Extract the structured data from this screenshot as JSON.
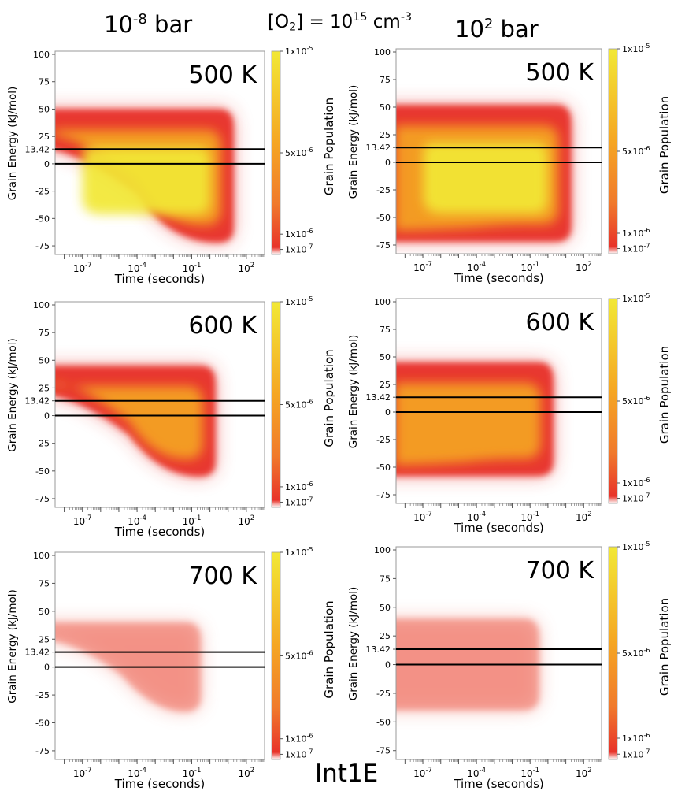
{
  "header": {
    "left_base": "10",
    "left_exp": "-8",
    "left_unit": " bar",
    "mid_open": "[O",
    "mid_sub": "2",
    "mid_rest": "] = 10",
    "mid_exp": "15",
    "mid_unit": " cm",
    "mid_unit_exp": "-3",
    "right_base": "10",
    "right_exp": "2",
    "right_unit": " bar"
  },
  "figure_label": "Int1E",
  "colors": {
    "low": "#e8332a",
    "mid": "#f5a623",
    "high": "#f2e836",
    "line": "#000000"
  },
  "chart_data": [
    {
      "type": "heatmap",
      "pressure": "10-8 bar",
      "temperature_label": "500 K",
      "xlabel": "Time (seconds)",
      "ylabel": "Grain Energy (kJ/mol)",
      "colorbar_label": "Grain Population",
      "x_ticks": [
        {
          "base": "10",
          "exp": "-7"
        },
        {
          "base": "10",
          "exp": "-4"
        },
        {
          "base": "10",
          "exp": "-1"
        },
        {
          "base": "10",
          "exp": "2"
        }
      ],
      "y_ticks": [
        "100",
        "75",
        "50",
        "25",
        "13.42",
        "0",
        "-25",
        "-50",
        "-75"
      ],
      "ylim": [
        -80,
        100
      ],
      "xlim_log10": [
        -8.5,
        3
      ],
      "colorbar_ticks": [
        "1x10-5",
        "5x10-6",
        "1x10-6",
        "1x10-7"
      ],
      "reference_lines": [
        13.42,
        0
      ],
      "band": {
        "t_start_log10": -8.3,
        "t_end_log10": 1.3,
        "top_energy": 50,
        "bottom_start": 15,
        "bottom_end": -72,
        "peak_population": "yellow"
      }
    },
    {
      "type": "heatmap",
      "pressure": "10^2 bar",
      "temperature_label": "500 K",
      "xlabel": "Time (seconds)",
      "ylabel": "Grain Energy (kJ/mol)",
      "colorbar_label": "Grain Population",
      "x_ticks": [
        {
          "base": "10",
          "exp": "-7"
        },
        {
          "base": "10",
          "exp": "-4"
        },
        {
          "base": "10",
          "exp": "-1"
        },
        {
          "base": "10",
          "exp": "2"
        }
      ],
      "y_ticks": [
        "100",
        "75",
        "50",
        "25",
        "13.42",
        "0",
        "-25",
        "-50",
        "-75"
      ],
      "ylim": [
        -80,
        100
      ],
      "xlim_log10": [
        -8.5,
        3
      ],
      "colorbar_ticks": [
        "1x10-5",
        "5x10-6",
        "1x10-6",
        "1x10-7"
      ],
      "reference_lines": [
        13.42,
        0
      ],
      "band": {
        "t_start_log10": -8.3,
        "t_end_log10": 1.3,
        "top_energy": 52,
        "bottom_start": -72,
        "bottom_end": -72,
        "peak_population": "yellow"
      }
    },
    {
      "type": "heatmap",
      "pressure": "10-8 bar",
      "temperature_label": "600 K",
      "xlabel": "Time (seconds)",
      "ylabel": "Grain Energy (kJ/mol)",
      "colorbar_label": "Grain Population",
      "x_ticks": [
        {
          "base": "10",
          "exp": "-7"
        },
        {
          "base": "10",
          "exp": "-4"
        },
        {
          "base": "10",
          "exp": "-1"
        },
        {
          "base": "10",
          "exp": "2"
        }
      ],
      "y_ticks": [
        "100",
        "75",
        "50",
        "25",
        "13.42",
        "0",
        "-25",
        "-50",
        "-75"
      ],
      "ylim": [
        -80,
        100
      ],
      "xlim_log10": [
        -8.5,
        3
      ],
      "colorbar_ticks": [
        "1x10-5",
        "5x10-6",
        "1x10-6",
        "1x10-7"
      ],
      "reference_lines": [
        13.42,
        0
      ],
      "band": {
        "t_start_log10": -8.3,
        "t_end_log10": 0.3,
        "top_energy": 45,
        "bottom_start": 20,
        "bottom_end": -55,
        "peak_population": "orange"
      }
    },
    {
      "type": "heatmap",
      "pressure": "10^2 bar",
      "temperature_label": "600 K",
      "xlabel": "Time (seconds)",
      "ylabel": "Grain Energy (kJ/mol)",
      "colorbar_label": "Grain Population",
      "x_ticks": [
        {
          "base": "10",
          "exp": "-7"
        },
        {
          "base": "10",
          "exp": "-4"
        },
        {
          "base": "10",
          "exp": "-1"
        },
        {
          "base": "10",
          "exp": "2"
        }
      ],
      "y_ticks": [
        "100",
        "75",
        "50",
        "25",
        "13.42",
        "0",
        "-25",
        "-50",
        "-75"
      ],
      "ylim": [
        -80,
        100
      ],
      "xlim_log10": [
        -8.5,
        3
      ],
      "colorbar_ticks": [
        "1x10-5",
        "5x10-6",
        "1x10-6",
        "1x10-7"
      ],
      "reference_lines": [
        13.42,
        0
      ],
      "band": {
        "t_start_log10": -8.3,
        "t_end_log10": 0.3,
        "top_energy": 45,
        "bottom_start": -58,
        "bottom_end": -58,
        "peak_population": "orange"
      }
    },
    {
      "type": "heatmap",
      "pressure": "10-8 bar",
      "temperature_label": "700 K",
      "xlabel": "Time (seconds)",
      "ylabel": "Grain Energy (kJ/mol)",
      "colorbar_label": "Grain Population",
      "x_ticks": [
        {
          "base": "10",
          "exp": "-7"
        },
        {
          "base": "10",
          "exp": "-4"
        },
        {
          "base": "10",
          "exp": "-1"
        },
        {
          "base": "10",
          "exp": "2"
        }
      ],
      "y_ticks": [
        "100",
        "75",
        "50",
        "25",
        "13.42",
        "0",
        "-25",
        "-50",
        "-75"
      ],
      "ylim": [
        -80,
        100
      ],
      "xlim_log10": [
        -8.5,
        3
      ],
      "colorbar_ticks": [
        "1x10-5",
        "5x10-6",
        "1x10-6",
        "1x10-7"
      ],
      "reference_lines": [
        13.42,
        0
      ],
      "band": {
        "t_start_log10": -8.3,
        "t_end_log10": -0.5,
        "top_energy": 40,
        "bottom_start": 25,
        "bottom_end": -40,
        "peak_population": "red"
      }
    },
    {
      "type": "heatmap",
      "pressure": "10^2 bar",
      "temperature_label": "700 K",
      "xlabel": "Time (seconds)",
      "ylabel": "Grain Energy (kJ/mol)",
      "colorbar_label": "Grain Population",
      "x_ticks": [
        {
          "base": "10",
          "exp": "-7"
        },
        {
          "base": "10",
          "exp": "-4"
        },
        {
          "base": "10",
          "exp": "-1"
        },
        {
          "base": "10",
          "exp": "2"
        }
      ],
      "y_ticks": [
        "100",
        "75",
        "50",
        "25",
        "13.42",
        "0",
        "-25",
        "-50",
        "-75"
      ],
      "ylim": [
        -80,
        100
      ],
      "xlim_log10": [
        -8.5,
        3
      ],
      "colorbar_ticks": [
        "1x10-5",
        "5x10-6",
        "1x10-6",
        "1x10-7"
      ],
      "reference_lines": [
        13.42,
        0
      ],
      "band": {
        "t_start_log10": -8.3,
        "t_end_log10": -0.5,
        "top_energy": 40,
        "bottom_start": -40,
        "bottom_end": -40,
        "peak_population": "red"
      }
    }
  ]
}
